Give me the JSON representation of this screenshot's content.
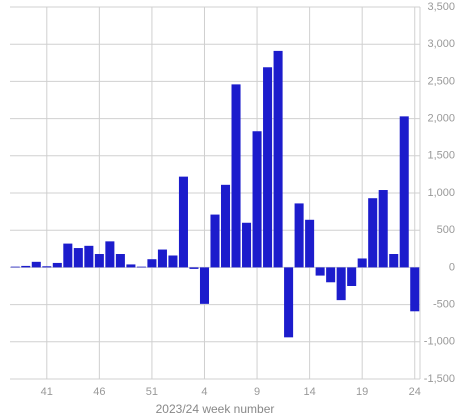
{
  "chart_data": {
    "type": "bar",
    "x_label": "2023/24 week number",
    "categories": [
      null,
      null,
      null,
      "41",
      null,
      null,
      null,
      null,
      "46",
      null,
      null,
      null,
      null,
      "51",
      null,
      null,
      null,
      null,
      "4",
      null,
      null,
      null,
      null,
      "9",
      null,
      null,
      null,
      null,
      "14",
      null,
      null,
      null,
      null,
      "19",
      null,
      null,
      null,
      null,
      "24"
    ],
    "values": [
      10,
      20,
      75,
      15,
      60,
      320,
      260,
      290,
      180,
      350,
      180,
      40,
      10,
      110,
      240,
      160,
      1220,
      -20,
      -490,
      710,
      1110,
      2460,
      600,
      1830,
      2690,
      2910,
      -940,
      860,
      640,
      -110,
      -200,
      -440,
      -250,
      120,
      930,
      1040,
      180,
      2030,
      -590
    ],
    "color": "#1c1ccc",
    "ylim": [
      -1500,
      3500
    ],
    "yticks": [
      {
        "value": -1500,
        "label": "-1,500"
      },
      {
        "value": -1000,
        "label": "-1,000"
      },
      -500,
      0,
      500,
      {
        "value": 1000,
        "label": "1,000"
      },
      {
        "value": 1500,
        "label": "1,500"
      },
      {
        "value": 2000,
        "label": "2,000"
      },
      {
        "value": 2500,
        "label": "2,500"
      },
      {
        "value": 3000,
        "label": "3,000"
      },
      {
        "value": 3500,
        "label": "3,500"
      }
    ],
    "grid": true
  }
}
